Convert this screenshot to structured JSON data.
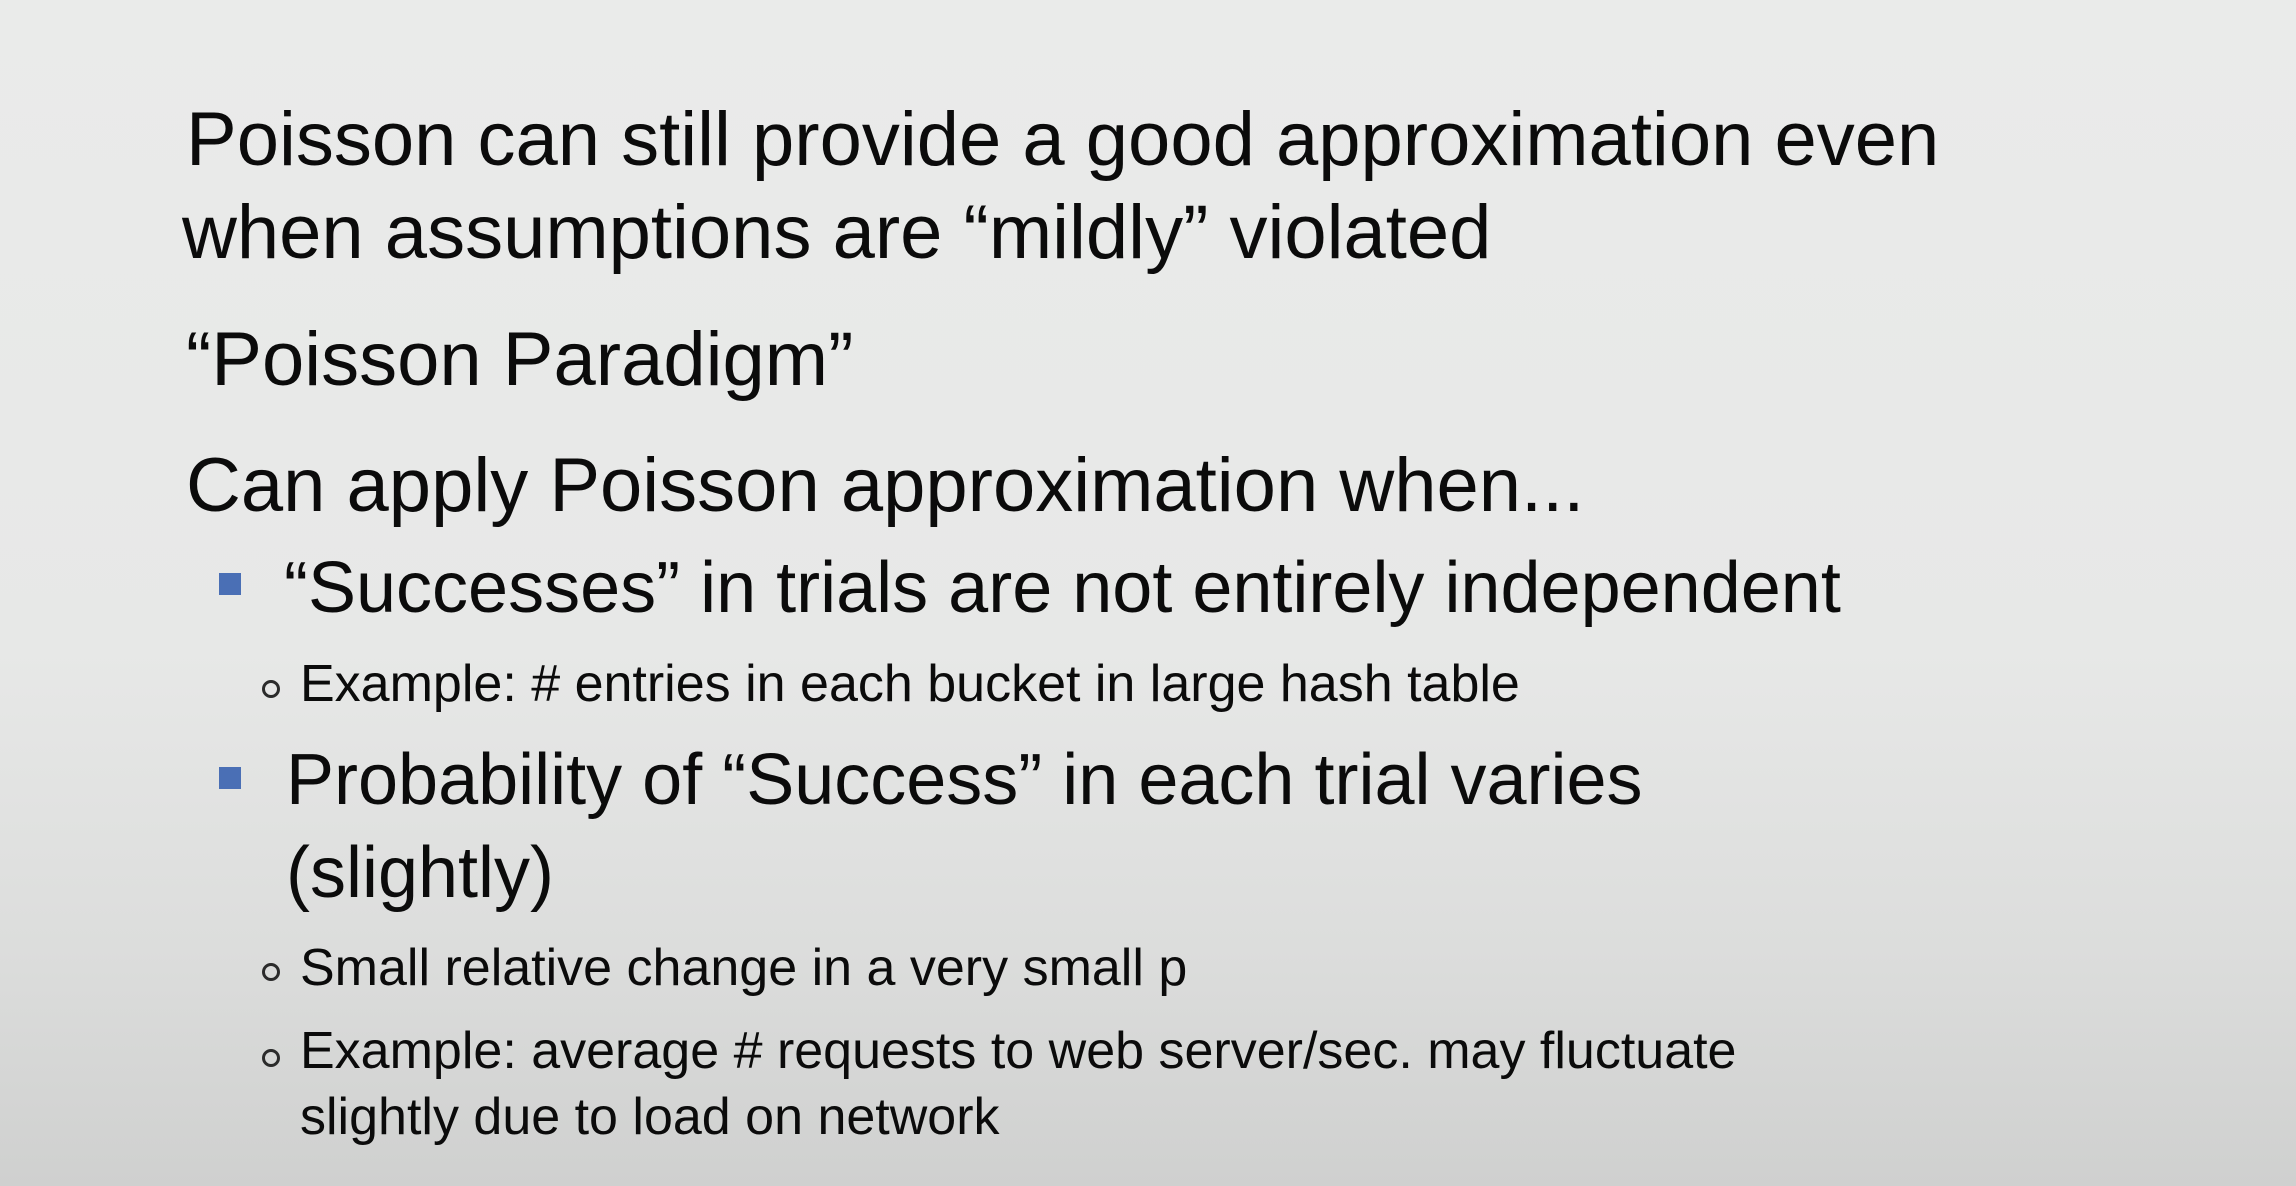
{
  "slide": {
    "heading_line1": "Poisson can still provide a good approximation even",
    "heading_line2": "when assumptions are “mildly” violated",
    "paradigm": "“Poisson Paradigm”",
    "apply_intro": "Can apply Poisson approximation when...",
    "bullets": [
      {
        "text": "“Successes” in trials are not entirely independent",
        "sub": [
          {
            "text": "Example: # entries in each bucket in large hash table"
          }
        ]
      },
      {
        "text_line1": "Probability of “Success” in each trial varies",
        "text_line2": "(slightly)",
        "sub": [
          {
            "text": "Small relative change in a very small p"
          },
          {
            "text_line1": "Example: average # requests to web server/sec. may fluctuate",
            "text_line2": "slightly due to load on network"
          }
        ]
      }
    ]
  },
  "colors": {
    "background": "#e8e9e8",
    "text": "#0b0b0b",
    "square_bullet": "#4a6fb5"
  },
  "icons": {
    "level1_bullet": "square-bullet-icon",
    "level2_bullet": "circle-bullet-icon"
  }
}
